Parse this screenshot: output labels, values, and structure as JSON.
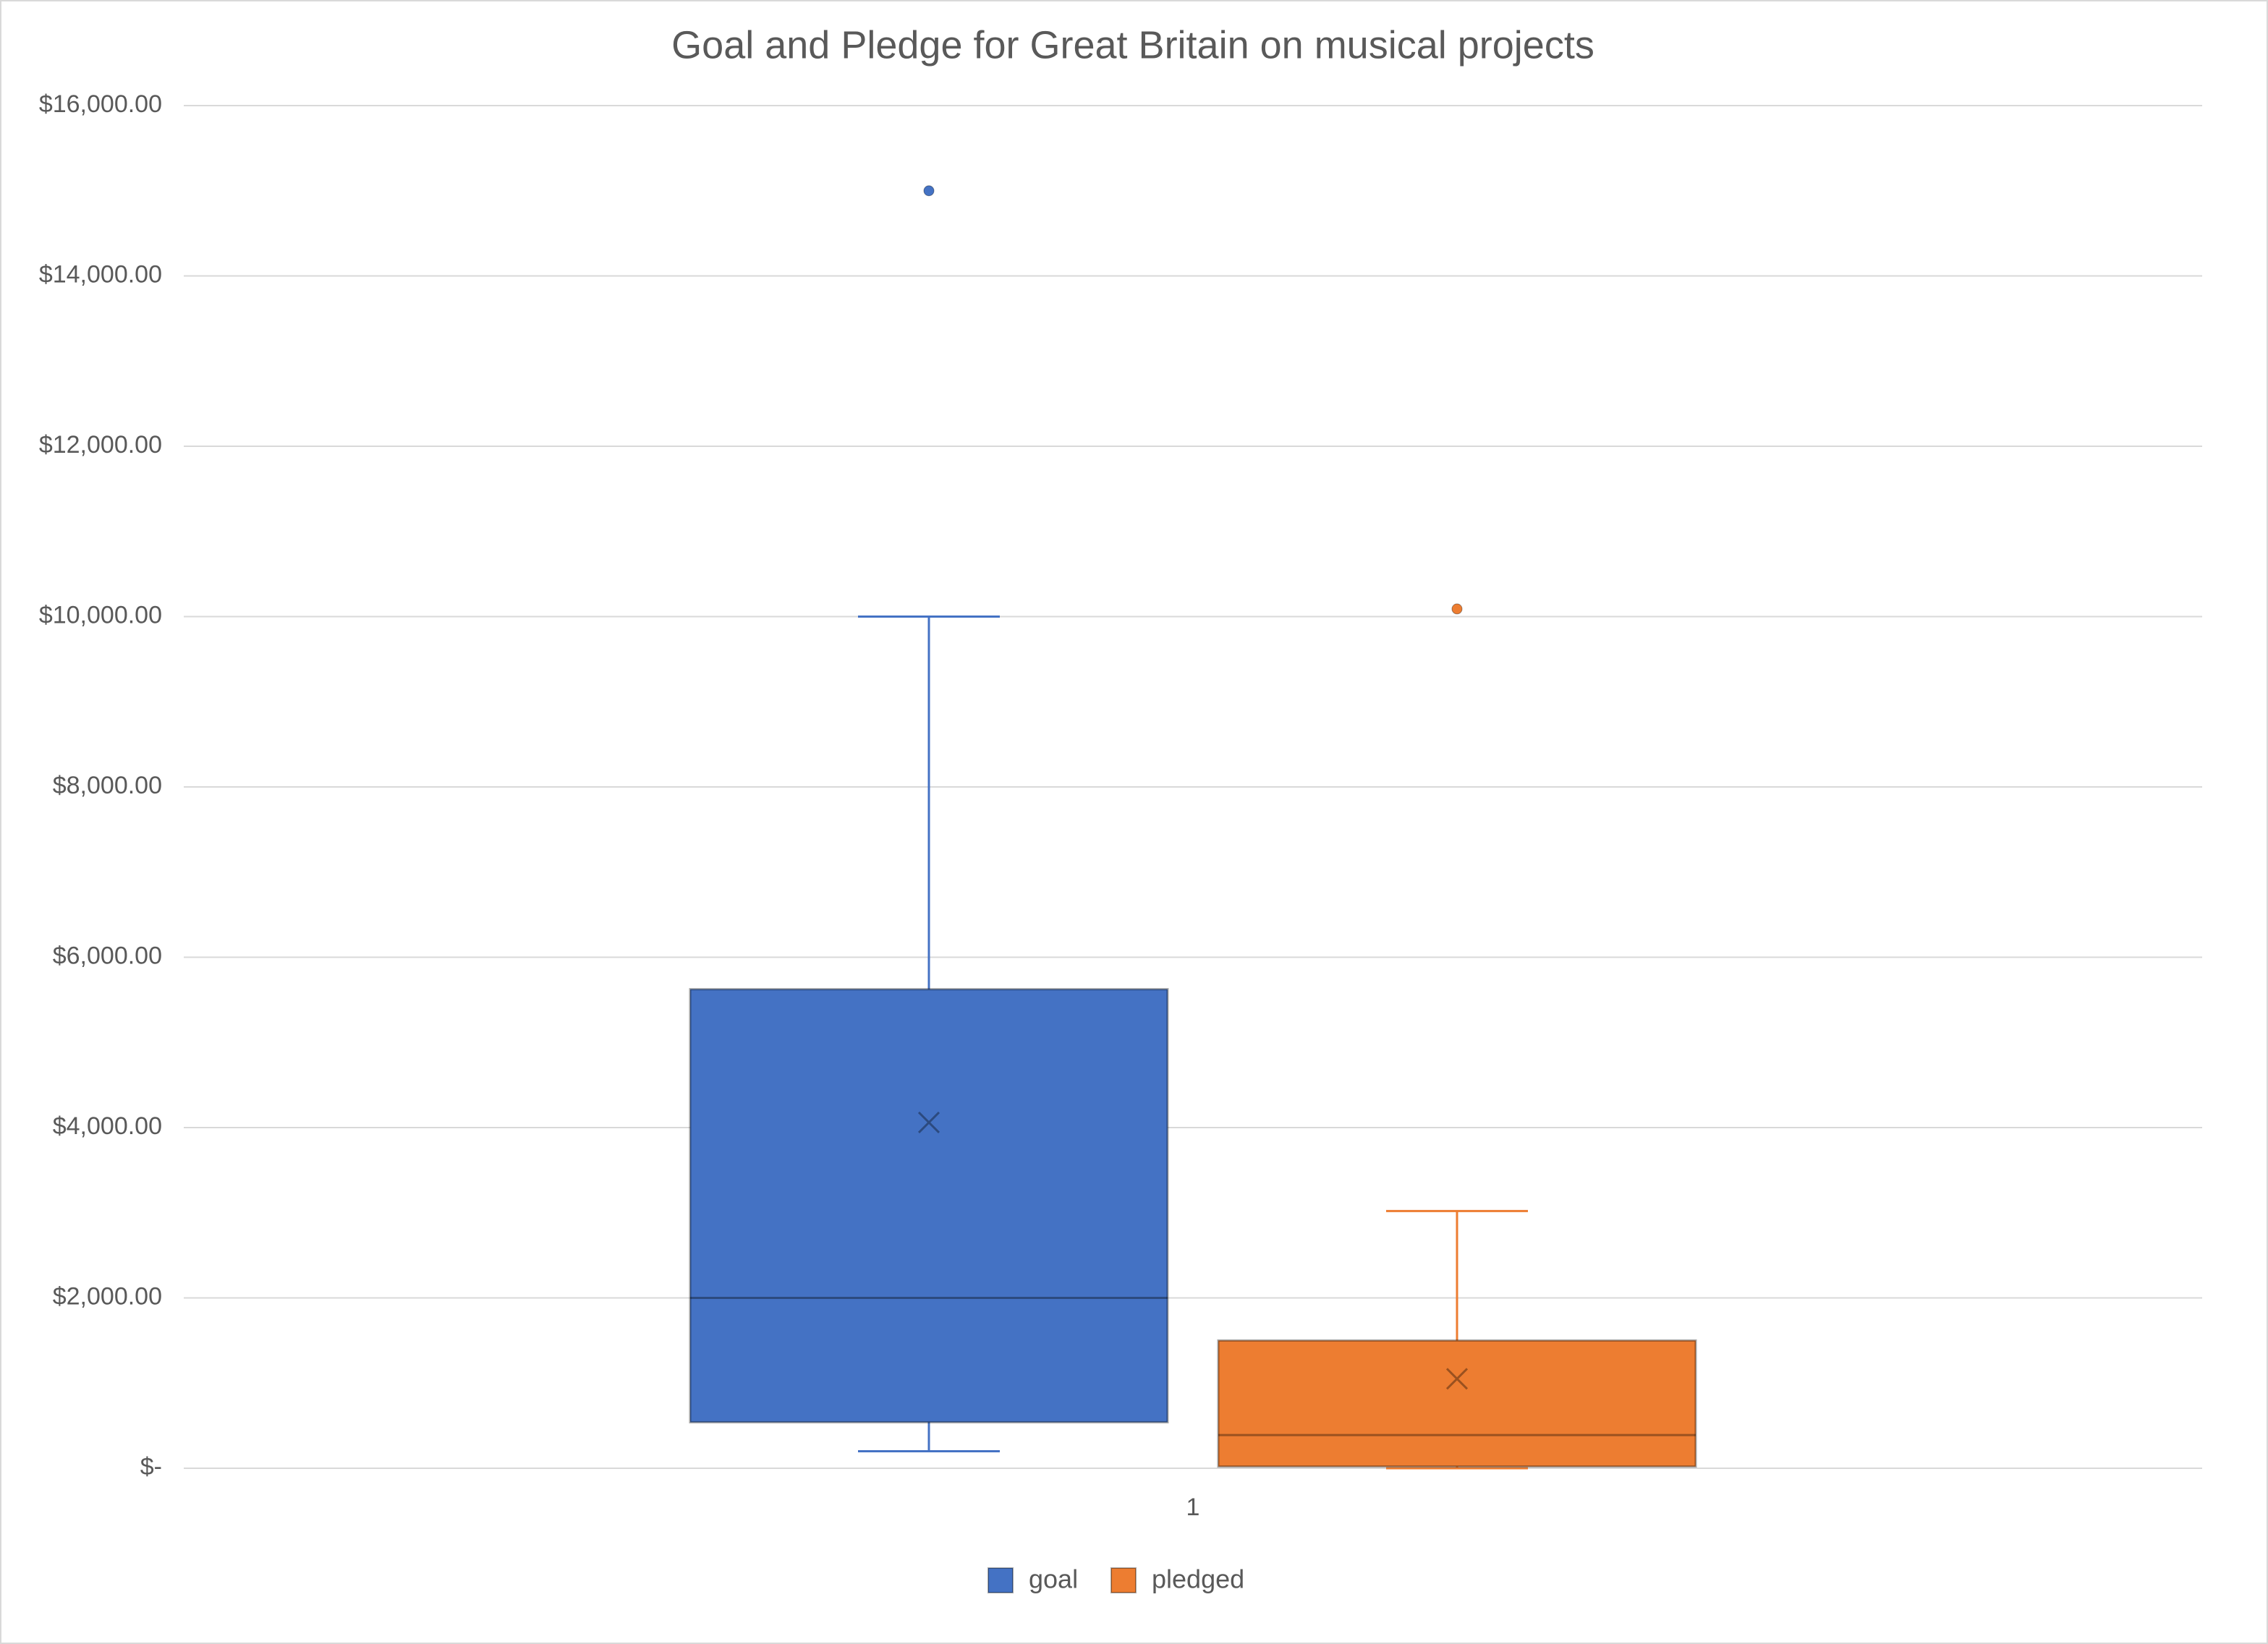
{
  "chart_data": {
    "type": "box",
    "title": "Goal and Pledge for Great Britain on musical projects",
    "categories": [
      "1"
    ],
    "ylim": [
      0,
      16000
    ],
    "yticks": [
      {
        "value": 0,
        "label": "$-"
      },
      {
        "value": 2000,
        "label": "$2,000.00"
      },
      {
        "value": 4000,
        "label": "$4,000.00"
      },
      {
        "value": 6000,
        "label": "$6,000.00"
      },
      {
        "value": 8000,
        "label": "$8,000.00"
      },
      {
        "value": 10000,
        "label": "$10,000.00"
      },
      {
        "value": 12000,
        "label": "$12,000.00"
      },
      {
        "value": 14000,
        "label": "$14,000.00"
      },
      {
        "value": 16000,
        "label": "$16,000.00"
      }
    ],
    "grid": true,
    "legend": "bottom",
    "series": [
      {
        "name": "goal",
        "color": "#4472c4",
        "min": 200,
        "q1": 540,
        "median": 2000,
        "q3": 5625,
        "max": 10000,
        "mean": 4060,
        "outliers": [
          15000
        ]
      },
      {
        "name": "pledged",
        "color": "#ed7d31",
        "min": 0,
        "q1": 20,
        "median": 390,
        "q3": 1500,
        "max": 3020,
        "mean": 1050,
        "outliers": [
          10090
        ]
      }
    ]
  }
}
